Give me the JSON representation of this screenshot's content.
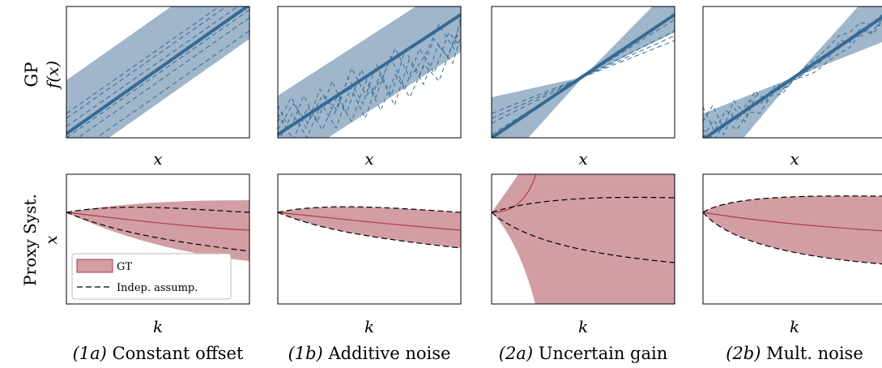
{
  "row_labels": {
    "gp": "GP",
    "proxy": "Proxy Syst."
  },
  "axis_labels": {
    "gp_x": "x",
    "gp_y": "f(x)",
    "proxy_x": "k",
    "proxy_y": "x"
  },
  "legend": {
    "gt": "GT",
    "indep": "Indep. assump."
  },
  "captions": [
    {
      "tag": "(1a)",
      "text": "Constant offset"
    },
    {
      "tag": "(1b)",
      "text": "Additive noise"
    },
    {
      "tag": "(2a)",
      "text": "Uncertain gain"
    },
    {
      "tag": "(2b)",
      "text": "Mult. noise"
    }
  ],
  "colors": {
    "gp_band": "#9fb6cb",
    "gp_line": "#346a93",
    "proxy_band": "#d29ea4",
    "proxy_line": "#b03a48",
    "dashed": "#000000"
  },
  "chart_data": [
    {
      "type": "line",
      "panel": "GP (1a)",
      "x": [
        0,
        1
      ],
      "mean": [
        0.05,
        1.05
      ],
      "band_half_width": [
        0.35,
        0.35
      ],
      "samples_offsets": [
        -0.25,
        -0.18,
        -0.1,
        0.08,
        0.18,
        0.28
      ],
      "xlim": [
        0,
        1
      ],
      "ylim": [
        0,
        1
      ]
    },
    {
      "type": "line",
      "panel": "GP (1b)",
      "x": [
        0,
        1
      ],
      "mean": [
        0.05,
        1.05
      ],
      "band_half_width": [
        0.3,
        0.3
      ],
      "sample_noise": "additive",
      "xlim": [
        0,
        1
      ],
      "ylim": [
        0,
        1
      ]
    },
    {
      "type": "line",
      "panel": "GP (2a)",
      "x": [
        0,
        1
      ],
      "mean": [
        0.0,
        1.05
      ],
      "pivot": [
        0.5,
        0.52
      ],
      "band_half_width_at_ends": 0.32,
      "sample_slopes": [
        0.85,
        0.9,
        0.95,
        1.08,
        1.12
      ],
      "xlim": [
        0,
        1
      ],
      "ylim": [
        0,
        1
      ]
    },
    {
      "type": "line",
      "panel": "GP (2b)",
      "x": [
        0,
        1
      ],
      "mean": [
        0.0,
        1.05
      ],
      "pivot": [
        0.5,
        0.52
      ],
      "band_half_width_at_ends": 0.32,
      "sample_noise": "multiplicative",
      "xlim": [
        0,
        1
      ],
      "ylim": [
        0,
        1
      ]
    },
    {
      "type": "area",
      "panel": "Proxy (1a)",
      "start": [
        0,
        0.71
      ],
      "gt_band_end": [
        0.52,
        1.2
      ],
      "gt_mean_end": 0.87,
      "indep_end": [
        0.58,
        1.15
      ],
      "xlim": [
        0,
        1
      ],
      "ylim": [
        0,
        1.6
      ]
    },
    {
      "type": "area",
      "panel": "Proxy (1b)",
      "start": [
        0,
        0.71
      ],
      "gt_band_end": [
        0.67,
        1.02
      ],
      "gt_mean_end": 0.87,
      "indep_end": [
        0.67,
        1.02
      ],
      "xlim": [
        0,
        1
      ],
      "ylim": [
        0,
        1.6
      ]
    },
    {
      "type": "area",
      "panel": "Proxy (2a)",
      "start": [
        0,
        0.71
      ],
      "gt_band": "diverging",
      "indep_end": [
        0.56,
        1.31
      ],
      "xlim": [
        0,
        1
      ],
      "ylim": [
        0,
        1.6
      ]
    },
    {
      "type": "area",
      "panel": "Proxy (2b)",
      "start": [
        0,
        0.71
      ],
      "gt_band_end": [
        0.57,
        1.23
      ],
      "gt_mean_end": 0.87,
      "indep_end": [
        0.57,
        1.23
      ],
      "xlim": [
        0,
        1
      ],
      "ylim": [
        0,
        1.6
      ]
    }
  ]
}
